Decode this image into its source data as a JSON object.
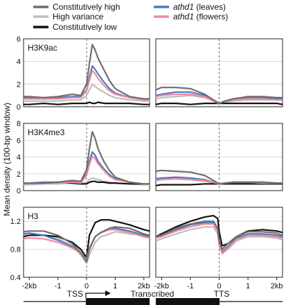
{
  "chart_data": {
    "type": "line",
    "ylabel": "Mean density (100-bp window)",
    "legend": [
      {
        "label": "Constitutively high",
        "italic": false,
        "color": "#6e6e6e",
        "series": 0
      },
      {
        "label": "High variance",
        "italic": false,
        "color": "#bdbdbd",
        "series": 1
      },
      {
        "label": "Constitutively low",
        "italic": false,
        "color": "#111111",
        "series": 2
      },
      {
        "label": "athd1",
        "suffix": " (leaves)",
        "italic": true,
        "color": "#4a78c8",
        "series": 3
      },
      {
        "label": "athd1",
        "suffix": " (flowers)",
        "italic": true,
        "color": "#f08a9a",
        "series": 4
      }
    ],
    "series_colors": [
      "#6e6e6e",
      "#bdbdbd",
      "#111111",
      "#4a78c8",
      "#f08a9a"
    ],
    "x_ticks_left": [
      -2,
      -1,
      0,
      1,
      2
    ],
    "x_tick_labels_left": [
      "-2kb",
      "-1",
      "0",
      "1",
      "2kb"
    ],
    "x_ticks_right": [
      -2,
      -1,
      0,
      1,
      2
    ],
    "x_tick_labels_right": [
      "-2kb",
      "-1",
      "0",
      "1",
      "2kb"
    ],
    "x_range": [
      -2.2,
      2.2
    ],
    "gene_track": {
      "tss_label": "TSS",
      "transcribed_label": "Transcribed",
      "tts_label": "TTS"
    },
    "panels": [
      {
        "label": "H3K9ac",
        "ylim": [
          0,
          6
        ],
        "yticks": [
          0,
          2,
          4,
          6
        ],
        "left": {
          "x": [
            -2.2,
            -2.0,
            -1.5,
            -1.0,
            -0.5,
            -0.2,
            0.0,
            0.1,
            0.2,
            0.3,
            0.4,
            0.6,
            0.8,
            1.0,
            1.5,
            2.0,
            2.2
          ],
          "series": [
            [
              0.9,
              0.9,
              0.8,
              0.9,
              1.1,
              1.0,
              2.0,
              3.8,
              5.5,
              5.0,
              4.3,
              3.3,
              2.3,
              1.6,
              0.9,
              0.7,
              0.7
            ],
            [
              0.5,
              0.5,
              0.5,
              0.5,
              0.6,
              0.6,
              1.0,
              1.5,
              2.0,
              1.8,
              1.6,
              1.3,
              1.0,
              0.8,
              0.6,
              0.5,
              0.5
            ],
            [
              0.2,
              0.2,
              0.3,
              0.2,
              0.3,
              0.3,
              0.3,
              0.4,
              0.3,
              0.3,
              0.4,
              0.3,
              0.3,
              0.3,
              0.3,
              0.2,
              0.2
            ],
            [
              0.8,
              0.8,
              0.8,
              0.8,
              0.9,
              0.9,
              1.5,
              2.6,
              3.6,
              3.3,
              2.9,
              2.2,
              1.6,
              1.2,
              0.8,
              0.7,
              0.7
            ],
            [
              0.7,
              0.7,
              0.7,
              0.7,
              0.8,
              0.8,
              1.4,
              2.3,
              3.2,
              2.9,
              2.5,
              1.9,
              1.4,
              1.1,
              0.8,
              0.6,
              0.6
            ]
          ]
        },
        "right": {
          "x": [
            -2.2,
            -2.0,
            -1.5,
            -1.0,
            -0.5,
            -0.2,
            0.0,
            0.2,
            0.5,
            1.0,
            1.5,
            2.0,
            2.2
          ],
          "series": [
            [
              1.5,
              1.7,
              1.7,
              1.6,
              1.1,
              0.6,
              0.3,
              0.5,
              0.7,
              0.9,
              0.9,
              0.8,
              0.8
            ],
            [
              0.7,
              0.8,
              0.9,
              1.0,
              0.8,
              0.5,
              0.3,
              0.4,
              0.5,
              0.6,
              0.6,
              0.6,
              0.6
            ],
            [
              0.2,
              0.3,
              0.3,
              0.2,
              0.3,
              0.3,
              0.3,
              0.3,
              0.3,
              0.3,
              0.3,
              0.3,
              0.2
            ],
            [
              1.0,
              1.1,
              1.3,
              1.3,
              1.0,
              0.6,
              0.3,
              0.5,
              0.7,
              0.8,
              0.8,
              0.7,
              0.7
            ],
            [
              0.9,
              1.0,
              1.1,
              1.1,
              0.9,
              0.5,
              0.3,
              0.5,
              0.6,
              0.7,
              0.7,
              0.6,
              0.6
            ]
          ]
        }
      },
      {
        "label": "H3K4me3",
        "ylim": [
          0,
          8
        ],
        "yticks": [
          0,
          2,
          4,
          6,
          8
        ],
        "left": {
          "x": [
            -2.2,
            -2.0,
            -1.5,
            -1.0,
            -0.5,
            -0.2,
            0.0,
            0.1,
            0.2,
            0.3,
            0.4,
            0.6,
            0.8,
            1.0,
            1.5,
            2.0,
            2.2
          ],
          "series": [
            [
              0.9,
              0.9,
              0.9,
              1.0,
              1.2,
              1.1,
              2.5,
              5.0,
              7.0,
              6.2,
              5.0,
              3.5,
              2.4,
              1.6,
              1.0,
              0.8,
              0.8
            ],
            [
              0.7,
              0.7,
              0.8,
              0.8,
              0.9,
              0.8,
              1.0,
              1.3,
              1.5,
              1.4,
              1.3,
              1.1,
              1.0,
              0.9,
              0.8,
              0.7,
              0.7
            ],
            [
              0.8,
              0.9,
              0.9,
              1.0,
              0.9,
              0.8,
              0.8,
              1.0,
              1.1,
              1.1,
              1.0,
              1.0,
              0.9,
              0.9,
              0.8,
              0.8,
              0.8
            ],
            [
              0.9,
              0.9,
              1.0,
              1.0,
              1.1,
              1.0,
              2.0,
              3.5,
              4.6,
              4.2,
              3.5,
              2.6,
              1.9,
              1.4,
              1.0,
              0.8,
              0.8
            ],
            [
              0.8,
              0.9,
              0.9,
              0.9,
              1.0,
              0.9,
              1.8,
              3.1,
              4.1,
              3.8,
              3.2,
              2.4,
              1.7,
              1.3,
              1.0,
              0.8,
              0.8
            ]
          ]
        },
        "right": {
          "x": [
            -2.2,
            -2.0,
            -1.5,
            -1.0,
            -0.5,
            -0.2,
            0.0,
            0.2,
            0.5,
            1.0,
            1.5,
            2.0,
            2.2
          ],
          "series": [
            [
              2.3,
              2.4,
              2.3,
              2.2,
              1.8,
              1.2,
              0.8,
              0.9,
              1.0,
              1.0,
              1.0,
              0.9,
              0.9
            ],
            [
              1.4,
              1.5,
              1.4,
              1.3,
              1.1,
              0.9,
              0.8,
              0.8,
              0.9,
              0.9,
              0.8,
              0.8,
              0.8
            ],
            [
              0.6,
              0.7,
              0.7,
              0.7,
              0.8,
              0.8,
              0.8,
              0.8,
              0.8,
              0.8,
              0.8,
              0.8,
              0.8
            ],
            [
              1.4,
              1.5,
              1.6,
              1.5,
              1.3,
              1.0,
              0.8,
              0.9,
              1.0,
              1.0,
              1.0,
              0.9,
              0.9
            ],
            [
              1.2,
              1.3,
              1.4,
              1.3,
              1.2,
              1.0,
              0.8,
              0.9,
              1.0,
              1.0,
              0.9,
              0.9,
              0.9
            ]
          ]
        }
      },
      {
        "label": "H3",
        "ylim": [
          0.4,
          1.4
        ],
        "yticks": [
          0.4,
          0.8,
          1.2
        ],
        "left": {
          "x": [
            -2.2,
            -2.0,
            -1.5,
            -1.0,
            -0.5,
            -0.2,
            0.0,
            0.1,
            0.3,
            0.5,
            0.8,
            1.0,
            1.5,
            2.0,
            2.2
          ],
          "series": [
            [
              1.05,
              1.06,
              1.06,
              1.0,
              0.88,
              0.75,
              0.62,
              0.8,
              0.98,
              1.04,
              1.1,
              1.12,
              1.1,
              1.02,
              1.0
            ],
            [
              1.0,
              1.0,
              1.0,
              0.95,
              0.85,
              0.72,
              0.6,
              0.72,
              0.9,
              0.98,
              1.02,
              1.05,
              1.02,
              1.0,
              0.98
            ],
            [
              0.98,
              1.0,
              1.0,
              0.98,
              0.9,
              0.8,
              0.68,
              1.0,
              1.18,
              1.22,
              1.22,
              1.2,
              1.15,
              1.08,
              1.06
            ],
            [
              1.02,
              1.03,
              1.0,
              0.93,
              0.84,
              0.74,
              0.66,
              0.82,
              0.98,
              1.04,
              1.08,
              1.1,
              1.06,
              1.0,
              0.98
            ],
            [
              0.95,
              0.96,
              0.95,
              0.9,
              0.82,
              0.74,
              0.65,
              0.82,
              0.98,
              1.04,
              1.08,
              1.08,
              1.04,
              0.98,
              0.96
            ]
          ]
        },
        "right": {
          "x": [
            -2.2,
            -2.0,
            -1.5,
            -1.0,
            -0.5,
            -0.2,
            -0.05,
            0.0,
            0.1,
            0.3,
            0.6,
            1.0,
            1.5,
            2.0,
            2.2
          ],
          "series": [
            [
              0.98,
              1.0,
              1.1,
              1.16,
              1.2,
              1.2,
              1.1,
              0.92,
              0.8,
              0.88,
              0.98,
              1.05,
              1.05,
              1.03,
              1.0
            ],
            [
              0.92,
              0.95,
              1.02,
              1.08,
              1.12,
              1.12,
              1.02,
              0.85,
              0.74,
              0.8,
              0.92,
              0.98,
              0.98,
              0.96,
              0.94
            ],
            [
              0.98,
              1.02,
              1.12,
              1.2,
              1.26,
              1.28,
              1.24,
              1.05,
              0.85,
              0.88,
              0.98,
              1.06,
              1.08,
              1.06,
              1.04
            ],
            [
              0.98,
              1.0,
              1.08,
              1.15,
              1.18,
              1.18,
              1.08,
              0.88,
              0.76,
              0.84,
              0.96,
              1.02,
              1.02,
              1.0,
              0.98
            ],
            [
              0.96,
              0.98,
              1.06,
              1.12,
              1.16,
              1.16,
              1.06,
              0.86,
              0.74,
              0.82,
              0.94,
              1.0,
              1.0,
              0.98,
              0.96
            ]
          ]
        }
      }
    ]
  }
}
